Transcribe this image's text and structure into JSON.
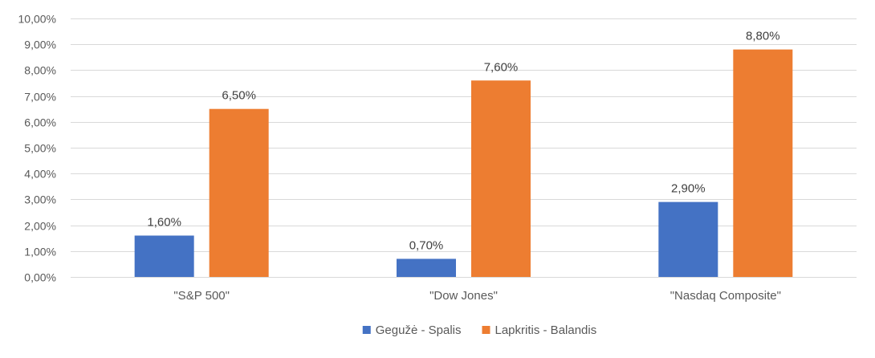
{
  "chart_data": {
    "type": "bar",
    "title": "",
    "xlabel": "",
    "ylabel": "",
    "categories": [
      "\"S&P 500\"",
      "\"Dow Jones\"",
      "\"Nasdaq Composite\""
    ],
    "series": [
      {
        "name": "Gegužė - Spalis",
        "color": "#4472c4",
        "values": [
          1.6,
          0.7,
          2.9
        ],
        "labels": [
          "1,60%",
          "0,70%",
          "2,90%"
        ]
      },
      {
        "name": "Lapkritis - Balandis",
        "color": "#ed7d31",
        "values": [
          6.5,
          7.6,
          8.8
        ],
        "labels": [
          "6,50%",
          "7,60%",
          "8,80%"
        ]
      }
    ],
    "ylim": [
      0,
      10
    ],
    "yticks": [
      0,
      1,
      2,
      3,
      4,
      5,
      6,
      7,
      8,
      9,
      10
    ],
    "ytick_labels": [
      "0,00%",
      "1,00%",
      "2,00%",
      "3,00%",
      "4,00%",
      "5,00%",
      "6,00%",
      "7,00%",
      "8,00%",
      "9,00%",
      "10,00%"
    ],
    "grid": true,
    "legend_position": "bottom"
  }
}
